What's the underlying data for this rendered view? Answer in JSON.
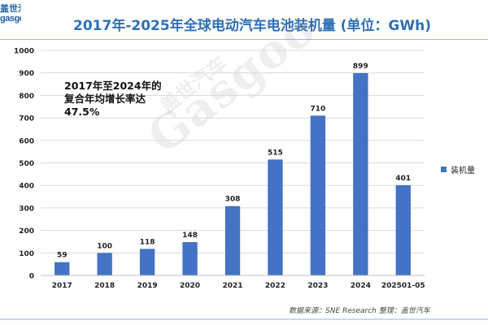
{
  "logo": {
    "line1": "盖世汽车",
    "line2": "gasgoo"
  },
  "watermark": {
    "brand": "Gasgoo",
    "cn": "盖世汽车"
  },
  "annotation": {
    "line1": "2017年至2024年的",
    "line2": "复合年均增长率达",
    "line3": "47.5%"
  },
  "source_text": "数据来源：SNE Research 整理：盖世汽车",
  "colors": {
    "bar": "#4472c4",
    "title": "#2f6fb5",
    "grid": "#d9d9d9"
  },
  "chart_data": {
    "type": "bar",
    "title": "2017年-2025年全球电动汽车电池装机量 (单位：GWh)",
    "categories": [
      "2017",
      "2018",
      "2019",
      "2020",
      "2021",
      "2022",
      "2023",
      "2024",
      "202501-05"
    ],
    "series": [
      {
        "name": "装机量",
        "values": [
          59,
          100,
          118,
          148,
          308,
          515,
          710,
          899,
          401
        ]
      }
    ],
    "xlabel": "",
    "ylabel": "",
    "ylim": [
      0,
      1000
    ],
    "yticks": [
      0,
      100,
      200,
      300,
      400,
      500,
      600,
      700,
      800,
      900,
      1000
    ],
    "grid": true,
    "legend": "right",
    "data_labels": true
  }
}
